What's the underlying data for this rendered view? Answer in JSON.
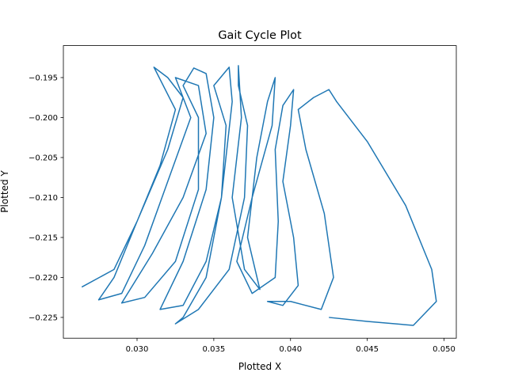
{
  "chart_data": {
    "type": "line",
    "title": "Gait Cycle Plot",
    "x_label": "Plotted X",
    "y_label": "Plotted Y",
    "color": "#1f77b4",
    "x": [
      0.0264,
      0.0285,
      0.03,
      0.0315,
      0.0325,
      0.0311,
      0.032,
      0.033,
      0.032,
      0.03,
      0.0285,
      0.0275,
      0.029,
      0.0305,
      0.032,
      0.0335,
      0.0325,
      0.034,
      0.0345,
      0.033,
      0.031,
      0.029,
      0.0305,
      0.0325,
      0.034,
      0.034,
      0.033,
      0.0337,
      0.0345,
      0.035,
      0.0345,
      0.033,
      0.0315,
      0.033,
      0.0345,
      0.0355,
      0.0358,
      0.035,
      0.036,
      0.0362,
      0.0355,
      0.0345,
      0.033,
      0.0325,
      0.034,
      0.036,
      0.037,
      0.0372,
      0.0366,
      0.0366,
      0.0368,
      0.0362,
      0.037,
      0.038,
      0.0372,
      0.0378,
      0.0385,
      0.039,
      0.0388,
      0.0375,
      0.0365,
      0.0375,
      0.039,
      0.0392,
      0.039,
      0.0395,
      0.0402,
      0.04,
      0.0395,
      0.0402,
      0.0405,
      0.0395,
      0.0385,
      0.04,
      0.042,
      0.0428,
      0.0422,
      0.041,
      0.0405,
      0.0415,
      0.0425,
      0.043,
      0.045,
      0.0475,
      0.0492,
      0.0495,
      0.048,
      0.045,
      0.0425
    ],
    "values": [
      -0.2212,
      -0.219,
      -0.213,
      -0.206,
      -0.199,
      -0.1937,
      -0.195,
      -0.1975,
      -0.204,
      -0.213,
      -0.22,
      -0.2228,
      -0.222,
      -0.216,
      -0.208,
      -0.2,
      -0.195,
      -0.196,
      -0.202,
      -0.21,
      -0.217,
      -0.2232,
      -0.2225,
      -0.218,
      -0.209,
      -0.2,
      -0.196,
      -0.1938,
      -0.1945,
      -0.2,
      -0.209,
      -0.218,
      -0.224,
      -0.2235,
      -0.218,
      -0.21,
      -0.201,
      -0.196,
      -0.1937,
      -0.198,
      -0.21,
      -0.22,
      -0.225,
      -0.2258,
      -0.224,
      -0.219,
      -0.21,
      -0.201,
      -0.196,
      -0.1935,
      -0.2,
      -0.21,
      -0.219,
      -0.2215,
      -0.215,
      -0.205,
      -0.198,
      -0.195,
      -0.201,
      -0.21,
      -0.218,
      -0.222,
      -0.22,
      -0.213,
      -0.204,
      -0.1985,
      -0.1965,
      -0.201,
      -0.208,
      -0.215,
      -0.221,
      -0.2235,
      -0.223,
      -0.223,
      -0.224,
      -0.22,
      -0.212,
      -0.204,
      -0.199,
      -0.1975,
      -0.1965,
      -0.198,
      -0.203,
      -0.211,
      -0.219,
      -0.223,
      -0.226,
      -0.2255,
      -0.225
    ],
    "xlim": [
      0.0252,
      0.0508
    ],
    "ylim": [
      -0.2276,
      -0.191
    ],
    "xticks": [
      {
        "value": 0.03,
        "label": "0.030"
      },
      {
        "value": 0.035,
        "label": "0.035"
      },
      {
        "value": 0.04,
        "label": "0.040"
      },
      {
        "value": 0.045,
        "label": "0.045"
      },
      {
        "value": 0.05,
        "label": "0.050"
      }
    ],
    "yticks": [
      {
        "value": -0.195,
        "label": "−0.195"
      },
      {
        "value": -0.2,
        "label": "−0.200"
      },
      {
        "value": -0.205,
        "label": "−0.205"
      },
      {
        "value": -0.21,
        "label": "−0.210"
      },
      {
        "value": -0.215,
        "label": "−0.215"
      },
      {
        "value": -0.22,
        "label": "−0.220"
      },
      {
        "value": -0.225,
        "label": "−0.225"
      }
    ]
  }
}
